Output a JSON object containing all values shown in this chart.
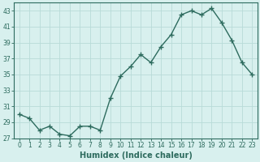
{
  "x": [
    0,
    1,
    2,
    3,
    4,
    5,
    6,
    7,
    8,
    9,
    10,
    11,
    12,
    13,
    14,
    15,
    16,
    17,
    18,
    19,
    20,
    21,
    22,
    23
  ],
  "y": [
    30,
    29.5,
    28,
    28.5,
    27.5,
    27.3,
    28.5,
    28.5,
    28,
    32,
    34.8,
    36,
    37.5,
    36.5,
    38.5,
    40,
    42.5,
    43,
    42.5,
    43.3,
    41.5,
    39.3,
    36.5,
    35
  ],
  "line_color": "#2d6b5e",
  "marker": "+",
  "marker_size": 4,
  "marker_lw": 1.0,
  "line_width": 1.0,
  "bg_color": "#d8f0ee",
  "grid_color": "#b8dbd8",
  "xlabel": "Humidex (Indice chaleur)",
  "ylabel": "",
  "ylim": [
    27,
    44
  ],
  "yticks": [
    27,
    29,
    31,
    33,
    35,
    37,
    39,
    41,
    43
  ],
  "xlim": [
    -0.5,
    23.5
  ],
  "xticks": [
    0,
    1,
    2,
    3,
    4,
    5,
    6,
    7,
    8,
    9,
    10,
    11,
    12,
    13,
    14,
    15,
    16,
    17,
    18,
    19,
    20,
    21,
    22,
    23
  ],
  "tick_fontsize": 5.5,
  "xlabel_fontsize": 7,
  "spine_color": "#2d6b5e"
}
